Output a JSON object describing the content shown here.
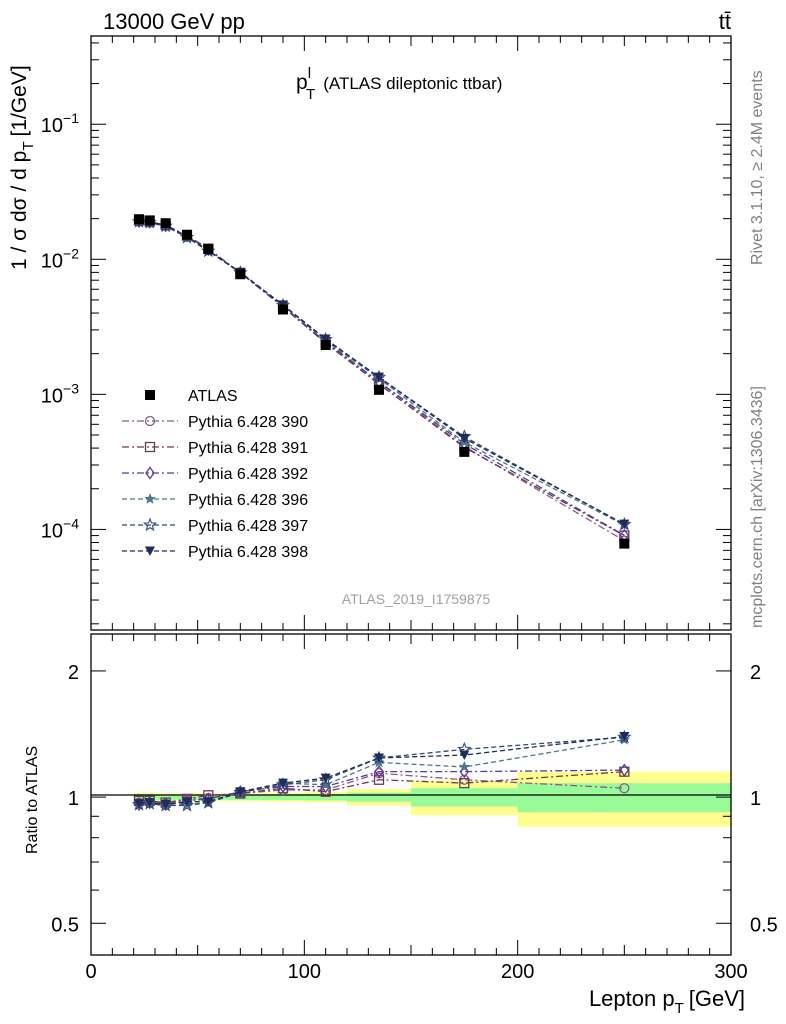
{
  "header": {
    "energy_label": "13000 GeV pp",
    "process_label": "tt̄"
  },
  "side_text": {
    "rivet": "Rivet 3.1.10, ≥ 2.4M events",
    "source": "mcplots.cern.ch [arXiv:1306.3436]"
  },
  "chart_data": [
    {
      "type": "line",
      "panel": "main",
      "title_main": "p",
      "title_sup": "l",
      "title_sub": "T",
      "title_rest": "(ATLAS dileptonic ttbar)",
      "ylabel": "1 / σ  dσ / d p",
      "ylabel_sub": "T",
      "ylabel_unit": "[1/GeV]",
      "yscale": "log",
      "ylim": [
        1.8e-05,
        0.45
      ],
      "xlim": [
        0,
        300
      ],
      "yticks": [
        {
          "value": 0.0001,
          "mant": "10",
          "exp": "−4"
        },
        {
          "value": 0.001,
          "mant": "10",
          "exp": "−3"
        },
        {
          "value": 0.01,
          "mant": "10",
          "exp": "−2"
        },
        {
          "value": 0.1,
          "mant": "10",
          "exp": "−1"
        }
      ],
      "watermark": "ATLAS_2019_I1759875",
      "legend_position": "lower-left",
      "x": [
        22.5,
        27.5,
        35,
        45,
        55,
        70,
        90,
        110,
        135,
        175,
        250
      ],
      "data": {
        "name": "ATLAS",
        "values": [
          0.0198,
          0.0194,
          0.0185,
          0.0152,
          0.0119,
          0.00775,
          0.00425,
          0.00232,
          0.00108,
          0.000375,
          7.85e-05
        ]
      },
      "series": [
        {
          "name": "Pythia 6.428 390",
          "color": "#8a5a8e",
          "marker": "circle-open",
          "dash": "7,3,2,3",
          "values": [
            0.0192,
            0.0189,
            0.0178,
            0.015,
            0.0119,
            0.00795,
            0.00442,
            0.00241,
            0.00123,
            0.000412,
            8.25e-05
          ]
        },
        {
          "name": "Pythia 6.428 391",
          "color": "#6b3b55",
          "marker": "square-open",
          "dash": "7,3,2,3",
          "values": [
            0.0194,
            0.019,
            0.0179,
            0.015,
            0.012,
            0.00793,
            0.00445,
            0.00239,
            0.00119,
            0.000405,
            9e-05
          ]
        },
        {
          "name": "Pythia 6.428 392",
          "color": "#5a3a9a",
          "marker": "diamond-open",
          "dash": "7,3,2,3",
          "values": [
            0.019,
            0.0188,
            0.0177,
            0.0149,
            0.0118,
            0.00797,
            0.0045,
            0.00245,
            0.00124,
            0.00043,
            9.05e-05
          ]
        },
        {
          "name": "Pythia 6.428 396",
          "color": "#4a7a88",
          "marker": "star-filled",
          "dash": "5,3",
          "values": [
            0.019,
            0.0187,
            0.0176,
            0.0146,
            0.0115,
            0.008,
            0.00458,
            0.00249,
            0.00131,
            0.000442,
            0.0001075
          ]
        },
        {
          "name": "Pythia 6.428 397",
          "color": "#2f4a7a",
          "marker": "star-open",
          "dash": "5,3",
          "values": [
            0.019,
            0.0187,
            0.0176,
            0.0145,
            0.0115,
            0.00795,
            0.00456,
            0.00255,
            0.00134,
            0.000486,
            0.000109
          ]
        },
        {
          "name": "Pythia 6.428 398",
          "color": "#1f2c5a",
          "marker": "triangle-down-filled",
          "dash": "5,3",
          "values": [
            0.0191,
            0.0188,
            0.0178,
            0.0148,
            0.0116,
            0.008,
            0.0046,
            0.00257,
            0.00134,
            0.000472,
            0.0001095
          ]
        }
      ]
    },
    {
      "type": "line",
      "panel": "ratio",
      "ylabel": "Ratio to ATLAS",
      "xlabel": "Lepton p",
      "xlabel_sub": "T",
      "xlabel_unit": "[GeV]",
      "yscale": "log",
      "ylim": [
        0.42,
        2.45
      ],
      "xlim": [
        0,
        300
      ],
      "xticks": [
        0,
        100,
        200,
        300
      ],
      "yticks": [
        0.5,
        1,
        2
      ],
      "reference_line": 1,
      "x": [
        22.5,
        27.5,
        35,
        45,
        55,
        70,
        90,
        110,
        135,
        175,
        250
      ],
      "bands": [
        {
          "x0": 20,
          "x1": 25,
          "inner": 0.018,
          "outer": 0.025
        },
        {
          "x0": 25,
          "x1": 30,
          "inner": 0.018,
          "outer": 0.025
        },
        {
          "x0": 30,
          "x1": 40,
          "inner": 0.015,
          "outer": 0.022
        },
        {
          "x0": 40,
          "x1": 50,
          "inner": 0.014,
          "outer": 0.022
        },
        {
          "x0": 50,
          "x1": 60,
          "inner": 0.015,
          "outer": 0.022
        },
        {
          "x0": 60,
          "x1": 80,
          "inner": 0.015,
          "outer": 0.022
        },
        {
          "x0": 80,
          "x1": 100,
          "inner": 0.016,
          "outer": 0.025
        },
        {
          "x0": 100,
          "x1": 120,
          "inner": 0.018,
          "outer": 0.028
        },
        {
          "x0": 120,
          "x1": 150,
          "inner": 0.025,
          "outer": 0.045
        },
        {
          "x0": 150,
          "x1": 200,
          "inner": 0.05,
          "outer": 0.095
        },
        {
          "x0": 200,
          "x1": 300,
          "inner": 0.08,
          "outer": 0.15
        }
      ],
      "band_colors": {
        "inner": "#98fb98",
        "outer": "#ffff90"
      },
      "series": [
        {
          "name": "Pythia 6.428 390",
          "values": [
            0.97,
            0.97,
            0.965,
            0.985,
            0.995,
            1.02,
            1.04,
            1.04,
            1.14,
            1.1,
            1.05
          ]
        },
        {
          "name": "Pythia 6.428 391",
          "values": [
            0.98,
            0.98,
            0.97,
            0.99,
            1.01,
            1.02,
            1.05,
            1.03,
            1.1,
            1.08,
            1.15
          ]
        },
        {
          "name": "Pythia 6.428 392",
          "values": [
            0.96,
            0.97,
            0.96,
            0.98,
            0.99,
            1.03,
            1.06,
            1.06,
            1.15,
            1.15,
            1.16
          ]
        },
        {
          "name": "Pythia 6.428 396",
          "values": [
            0.96,
            0.965,
            0.955,
            0.96,
            0.97,
            1.03,
            1.08,
            1.07,
            1.21,
            1.18,
            1.37
          ]
        },
        {
          "name": "Pythia 6.428 397",
          "values": [
            0.96,
            0.965,
            0.955,
            0.955,
            0.97,
            1.025,
            1.07,
            1.1,
            1.24,
            1.3,
            1.39
          ]
        },
        {
          "name": "Pythia 6.428 398",
          "values": [
            0.965,
            0.97,
            0.96,
            0.975,
            0.975,
            1.03,
            1.08,
            1.11,
            1.24,
            1.26,
            1.395
          ]
        }
      ]
    }
  ]
}
